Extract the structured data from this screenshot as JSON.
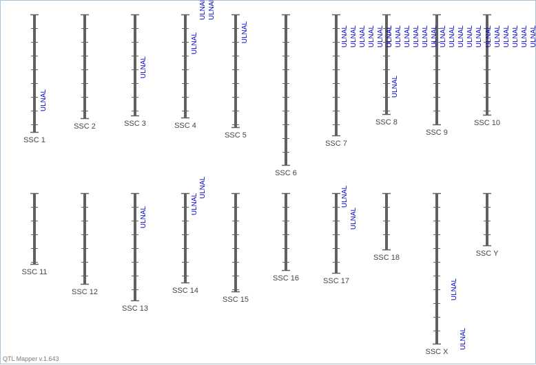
{
  "app": {
    "footer": "QTL Mapper v.1.643"
  },
  "colors": {
    "chromosome": "#606060",
    "qtl_label": "#0000cc",
    "chrom_label": "#444444"
  },
  "qtl_trait": "ULNAL",
  "chromosomes": [
    {
      "name": "SSC 1",
      "qtl_count": 1
    },
    {
      "name": "SSC 2",
      "qtl_count": 0
    },
    {
      "name": "SSC 3",
      "qtl_count": 1
    },
    {
      "name": "SSC 4",
      "qtl_count": 3
    },
    {
      "name": "SSC 5",
      "qtl_count": 1
    },
    {
      "name": "SSC 6",
      "qtl_count": 0
    },
    {
      "name": "SSC 7",
      "qtl_count": 6
    },
    {
      "name": "SSC 8",
      "qtl_count": 6
    },
    {
      "name": "SSC 9",
      "qtl_count": 6
    },
    {
      "name": "SSC 10",
      "qtl_count": 6
    },
    {
      "name": "SSC 11",
      "qtl_count": 0
    },
    {
      "name": "SSC 12",
      "qtl_count": 0
    },
    {
      "name": "SSC 13",
      "qtl_count": 1
    },
    {
      "name": "SSC 14",
      "qtl_count": 2
    },
    {
      "name": "SSC 15",
      "qtl_count": 0
    },
    {
      "name": "SSC 16",
      "qtl_count": 0
    },
    {
      "name": "SSC 17",
      "qtl_count": 2
    },
    {
      "name": "SSC 18",
      "qtl_count": 0
    },
    {
      "name": "SSC X",
      "qtl_count": 2
    },
    {
      "name": "SSC Y",
      "qtl_count": 0
    }
  ]
}
